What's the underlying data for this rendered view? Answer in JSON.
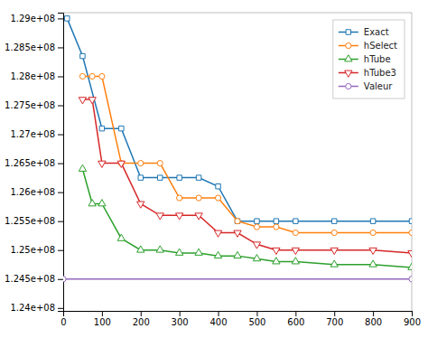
{
  "chart_data": {
    "type": "line",
    "series": [
      {
        "name": "Exact",
        "marker": "square",
        "x": [
          10,
          50,
          100,
          150,
          200,
          250,
          300,
          350,
          400,
          450,
          500,
          550,
          600,
          700,
          800,
          900
        ],
        "values": [
          129000000.0,
          128350000.0,
          127100000.0,
          127100000.0,
          126250000.0,
          126250000.0,
          126250000.0,
          126250000.0,
          126100000.0,
          125500000.0,
          125500000.0,
          125500000.0,
          125500000.0,
          125500000.0,
          125500000.0,
          125500000.0
        ]
      },
      {
        "name": "hSelect",
        "marker": "circle",
        "x": [
          50,
          75,
          100,
          150,
          200,
          250,
          300,
          350,
          400,
          450,
          500,
          550,
          600,
          700,
          800,
          900
        ],
        "values": [
          128000000.0,
          128000000.0,
          128000000.0,
          126500000.0,
          126500000.0,
          126500000.0,
          125900000.0,
          125900000.0,
          125900000.0,
          125500000.0,
          125400000.0,
          125400000.0,
          125300000.0,
          125300000.0,
          125300000.0,
          125300000.0
        ]
      },
      {
        "name": "hTube",
        "marker": "triangle-up",
        "x": [
          50,
          75,
          100,
          150,
          200,
          250,
          300,
          350,
          400,
          450,
          500,
          550,
          600,
          700,
          800,
          900
        ],
        "values": [
          126400000.0,
          125800000.0,
          125800000.0,
          125200000.0,
          125000000.0,
          125000000.0,
          124950000.0,
          124950000.0,
          124900000.0,
          124900000.0,
          124850000.0,
          124800000.0,
          124800000.0,
          124750000.0,
          124750000.0,
          124700000.0
        ]
      },
      {
        "name": "hTube3",
        "marker": "triangle-down",
        "x": [
          50,
          75,
          100,
          150,
          200,
          250,
          300,
          350,
          400,
          450,
          500,
          550,
          600,
          700,
          800,
          900
        ],
        "values": [
          127600000.0,
          127600000.0,
          126500000.0,
          126500000.0,
          125800000.0,
          125600000.0,
          125600000.0,
          125600000.0,
          125300000.0,
          125300000.0,
          125100000.0,
          125000000.0,
          125000000.0,
          125000000.0,
          125000000.0,
          124950000.0
        ]
      },
      {
        "name": "Valeur",
        "marker": "circle",
        "x": [
          0,
          900
        ],
        "values": [
          124500000.0,
          124500000.0
        ]
      }
    ],
    "xlim": [
      0,
      900
    ],
    "xticks": [
      0,
      100,
      200,
      300,
      400,
      500,
      600,
      700,
      800,
      900
    ],
    "ylim": [
      123950000.0,
      129100000.0
    ],
    "yticks": [
      {
        "value": 124000000.0,
        "label": "1.24e+08"
      },
      {
        "value": 124500000.0,
        "label": "1.245e+08"
      },
      {
        "value": 125000000.0,
        "label": "1.25e+08"
      },
      {
        "value": 125500000.0,
        "label": "1.255e+08"
      },
      {
        "value": 126000000.0,
        "label": "1.26e+08"
      },
      {
        "value": 126500000.0,
        "label": "1.265e+08"
      },
      {
        "value": 127000000.0,
        "label": "1.27e+08"
      },
      {
        "value": 127500000.0,
        "label": "1.275e+08"
      },
      {
        "value": 128000000.0,
        "label": "1.28e+08"
      },
      {
        "value": 128500000.0,
        "label": "1.285e+08"
      },
      {
        "value": 129000000.0,
        "label": "1.29e+08"
      }
    ],
    "grid": false,
    "legend": "upper right"
  }
}
